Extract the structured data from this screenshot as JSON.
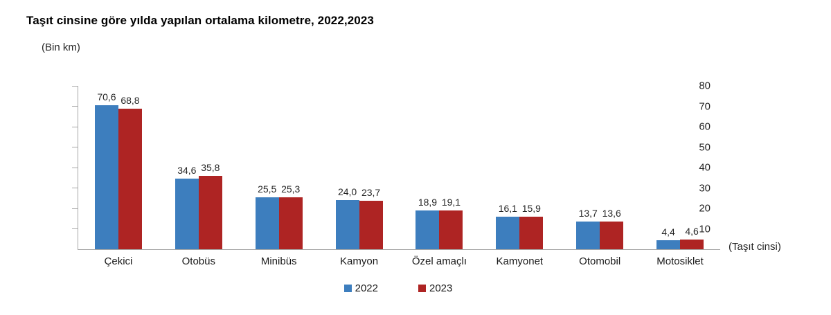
{
  "chart_data": {
    "type": "bar",
    "title": "Taşıt cinsine göre yılda yapılan ortalama kilometre, 2022,2023",
    "ylabel": "(Bin km)",
    "xlabel": "(Taşıt cinsi)",
    "categories": [
      "Çekici",
      "Otobüs",
      "Minibüs",
      "Kamyon",
      "Özel amaçlı",
      "Kamyonet",
      "Otomobil",
      "Motosiklet"
    ],
    "series": [
      {
        "name": "2022",
        "color": "#3d7ebe",
        "values": [
          70.6,
          34.6,
          25.5,
          24.0,
          18.9,
          16.1,
          13.7,
          4.4
        ],
        "labels": [
          "70,6",
          "34,6",
          "25,5",
          "24,0",
          "18,9",
          "16,1",
          "13,7",
          "4,4"
        ]
      },
      {
        "name": "2023",
        "color": "#ae2423",
        "values": [
          68.8,
          35.8,
          25.3,
          23.7,
          19.1,
          15.9,
          13.6,
          4.6
        ],
        "labels": [
          "68,8",
          "35,8",
          "25,3",
          "23,7",
          "19,1",
          "15,9",
          "13,6",
          "4,6"
        ]
      }
    ],
    "ylim": [
      0,
      80
    ],
    "yticks": [
      10,
      20,
      30,
      40,
      50,
      60,
      70,
      80
    ],
    "grid": false,
    "legend_position": "bottom",
    "axis_color": "#a6a6a6"
  }
}
